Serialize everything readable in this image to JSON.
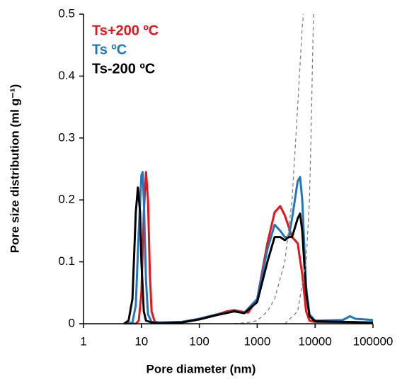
{
  "chart_data": {
    "type": "line",
    "x_label": "Pore diameter (nm)",
    "y_label": "Pore size distribution (ml g⁻¹)",
    "x_log": true,
    "xlim": [
      1,
      100000
    ],
    "xticks": [
      1,
      10,
      100,
      1000,
      10000,
      100000
    ],
    "ylim": [
      0,
      0.5
    ],
    "yticks": [
      0,
      0.1,
      0.2,
      0.3,
      0.4,
      0.5
    ],
    "legend": "upper left",
    "series": [
      {
        "name": "Ts+200 ºC",
        "color": "#e8141c",
        "x": [
          5,
          8,
          9,
          10,
          11,
          12,
          13,
          14,
          15,
          17,
          20,
          30,
          50,
          100,
          200,
          300,
          400,
          500,
          700,
          1000,
          1500,
          2000,
          2500,
          3000,
          4000,
          5000,
          6000,
          7000,
          8000,
          10000,
          100000
        ],
        "values": [
          0,
          0,
          0.005,
          0.05,
          0.18,
          0.245,
          0.2,
          0.08,
          0.02,
          0.003,
          0.002,
          0.002,
          0.003,
          0.008,
          0.015,
          0.02,
          0.022,
          0.02,
          0.018,
          0.04,
          0.13,
          0.18,
          0.19,
          0.175,
          0.14,
          0.13,
          0.08,
          0.02,
          0.005,
          0.003,
          0.002
        ]
      },
      {
        "name": "Ts ºC",
        "color": "#1f77c0",
        "x": [
          5,
          7,
          8,
          9,
          10,
          10.5,
          11,
          12,
          13,
          15,
          20,
          50,
          100,
          200,
          400,
          600,
          1000,
          1500,
          2000,
          2500,
          3000,
          3500,
          4000,
          5000,
          5500,
          6000,
          7000,
          8000,
          10000,
          30000,
          40000,
          50000,
          100000
        ],
        "values": [
          0,
          0.002,
          0.03,
          0.15,
          0.24,
          0.245,
          0.2,
          0.07,
          0.015,
          0.003,
          0.002,
          0.003,
          0.008,
          0.015,
          0.02,
          0.018,
          0.04,
          0.12,
          0.16,
          0.15,
          0.14,
          0.14,
          0.17,
          0.23,
          0.237,
          0.2,
          0.06,
          0.015,
          0.005,
          0.006,
          0.012,
          0.008,
          0.006
        ]
      },
      {
        "name": "Ts-200 ºC",
        "color": "#000000",
        "x": [
          5,
          6,
          7,
          8,
          8.7,
          9.5,
          10,
          11,
          12,
          15,
          20,
          50,
          100,
          200,
          400,
          600,
          1000,
          1500,
          2000,
          2500,
          3000,
          3500,
          4000,
          5000,
          5500,
          6000,
          7000,
          8000,
          10000,
          100000
        ],
        "values": [
          0,
          0.005,
          0.04,
          0.18,
          0.22,
          0.18,
          0.1,
          0.02,
          0.005,
          0.002,
          0.001,
          0.002,
          0.007,
          0.014,
          0.02,
          0.017,
          0.035,
          0.1,
          0.14,
          0.14,
          0.135,
          0.14,
          0.14,
          0.17,
          0.178,
          0.15,
          0.05,
          0.012,
          0.004,
          0.002
        ]
      },
      {
        "color": "#808080",
        "dashed": true,
        "x": [
          400,
          700,
          1000,
          1500,
          2000,
          3000,
          4000,
          5000,
          6000,
          6300
        ],
        "values": [
          0,
          0.002,
          0.005,
          0.02,
          0.04,
          0.1,
          0.2,
          0.35,
          0.48,
          0.5
        ]
      },
      {
        "color": "#808080",
        "dashed": true,
        "x": [
          3000,
          5000,
          7000,
          8000,
          8500,
          9000,
          9400
        ],
        "values": [
          0,
          0.02,
          0.1,
          0.2,
          0.3,
          0.42,
          0.5
        ]
      }
    ]
  }
}
